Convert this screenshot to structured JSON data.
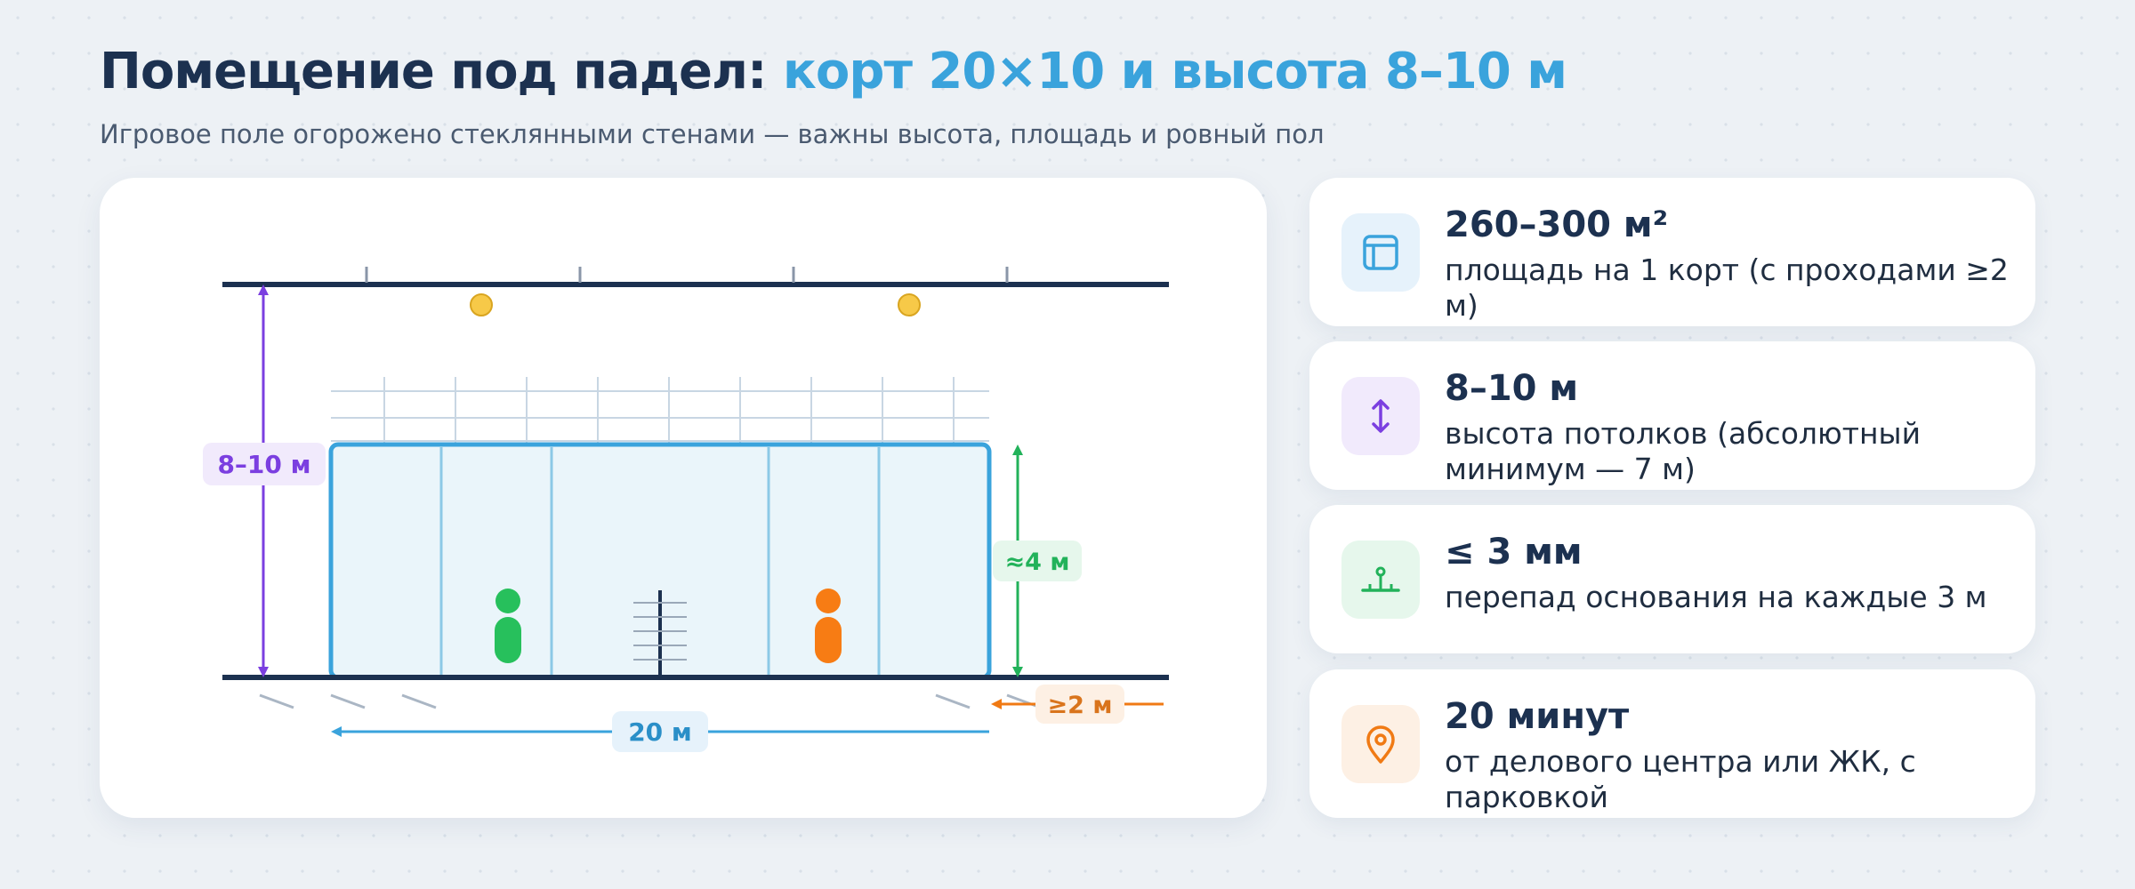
{
  "header": {
    "title_main": "Помещение под падел: ",
    "title_accent": "корт 20×10 и высота 8–10 м",
    "subtitle": "Игровое поле огорожено стеклянными стенами — важны высота, площадь и ровный пол"
  },
  "diagram": {
    "labels": {
      "ceiling_height": "8–10 м",
      "wall_height": "≈4 м",
      "clearance": "≥2 м",
      "court_length": "20 м"
    },
    "colors": {
      "structure": "#1c3150",
      "ceiling_marker": "#7b3fe0",
      "wall_marker": "#22b25a",
      "clearance_marker": "#f07a14",
      "length_marker": "#3aa3dc",
      "lamp": "#f7c948",
      "glass": "#eaf5fa",
      "glass_border": "#3aa3dc",
      "player_left": "#27c05c",
      "player_right": "#f77c14"
    }
  },
  "metrics": [
    {
      "value": "260–300 м²",
      "desc": "площадь на 1 корт (с проходами ≥2 м)",
      "icon": "area-icon",
      "color": "#3aa3dc",
      "bg": "#e6f2fb"
    },
    {
      "value": "8–10 м",
      "desc": "высота потолков (абсолютный минимум — 7 м)",
      "icon": "vertical-arrows-icon",
      "color": "#7b3fe0",
      "bg": "#f1eafc"
    },
    {
      "value": "≤ 3 мм",
      "desc": "перепад основания на каждые 3 м",
      "icon": "level-icon",
      "color": "#22b25a",
      "bg": "#e6f7ec"
    },
    {
      "value": "20 минут",
      "desc": "от делового центра или ЖК, с парковкой",
      "icon": "location-pin-icon",
      "color": "#f07a14",
      "bg": "#fdf0e4"
    }
  ]
}
